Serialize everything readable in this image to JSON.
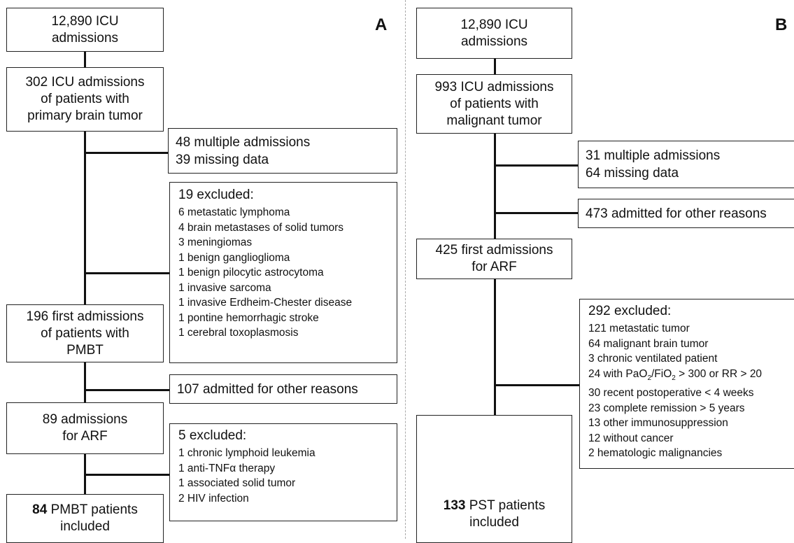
{
  "panelA": {
    "letter": "A",
    "box1": [
      "12,890  ICU",
      "admissions"
    ],
    "box2": [
      "302 ICU admissions",
      "of patients with",
      "primary brain tumor"
    ],
    "side1": [
      "48 multiple admissions",
      "39 missing data"
    ],
    "side2": {
      "head": "19 excluded:",
      "items": [
        "6 metastatic lymphoma",
        "4 brain metastases of solid tumors",
        "3 meningiomas",
        "1 benign ganglioglioma",
        "1 benign pilocytic astrocytoma",
        "1 invasive sarcoma",
        "1 invasive Erdheim-Chester disease",
        "1 pontine hemorrhagic stroke",
        "1 cerebral toxoplasmosis"
      ]
    },
    "box3": [
      "196 first admissions",
      "of patients with",
      "PMBT"
    ],
    "side3": "107 admitted for other reasons",
    "box4": [
      "89 admissions",
      "for ARF"
    ],
    "side4": {
      "head": "5 excluded:",
      "items": [
        "1 chronic lymphoid leukemia",
        "1 anti-TNFα therapy",
        "1 associated solid tumor",
        "2 HIV infection"
      ]
    },
    "box5": {
      "bold": "84",
      "rest": " PMBT patients",
      "line2": "included"
    }
  },
  "panelB": {
    "letter": "B",
    "box1": [
      "12,890  ICU",
      "admissions"
    ],
    "box2": [
      "993 ICU admissions",
      "of patients with",
      "malignant tumor"
    ],
    "side1": [
      "31 multiple admissions",
      "64 missing data"
    ],
    "side2": "473 admitted for other reasons",
    "box3": [
      "425 first admissions",
      "for ARF"
    ],
    "side3": {
      "head": "292 excluded:",
      "items": [
        "121 metastatic tumor",
        "64 malignant brain tumor",
        "3 chronic ventilated patient",
        "24 with PaO2/FiO2 > 300 or RR > 20",
        "30 recent postoperative < 4 weeks",
        "23 complete remission > 5 years",
        "13 other immunosuppression",
        "12 without cancer",
        "2 hematologic malignancies"
      ]
    },
    "box4": {
      "bold": "133",
      "rest": " PST patients",
      "line2": "included"
    }
  }
}
